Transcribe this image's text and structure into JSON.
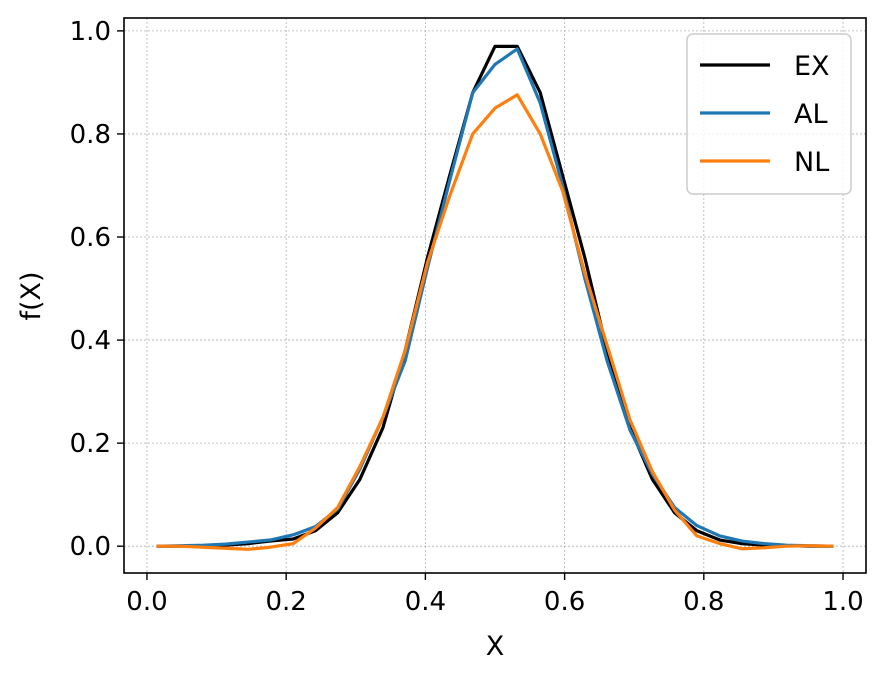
{
  "chart_data": {
    "type": "line",
    "xlabel": "X",
    "ylabel": "f(X)",
    "xlim": [
      -0.033,
      1.033
    ],
    "ylim": [
      -0.052,
      1.025
    ],
    "xticks": [
      0.0,
      0.2,
      0.4,
      0.6,
      0.8,
      1.0
    ],
    "xtick_labels": [
      "0.0",
      "0.2",
      "0.4",
      "0.6",
      "0.8",
      "1.0"
    ],
    "yticks": [
      0.0,
      0.2,
      0.4,
      0.6,
      0.8,
      1.0
    ],
    "ytick_labels": [
      "0.0",
      "0.2",
      "0.4",
      "0.6",
      "0.8",
      "1.0"
    ],
    "grid": true,
    "legend_position": "top-right",
    "x": [
      0.016,
      0.048,
      0.081,
      0.113,
      0.145,
      0.177,
      0.21,
      0.242,
      0.274,
      0.306,
      0.339,
      0.371,
      0.403,
      0.435,
      0.468,
      0.5,
      0.532,
      0.565,
      0.597,
      0.629,
      0.661,
      0.694,
      0.726,
      0.758,
      0.79,
      0.823,
      0.855,
      0.887,
      0.919,
      0.952,
      0.984
    ],
    "series": [
      {
        "name": "EX",
        "color": "#000000",
        "values": [
          0.0,
          0.0,
          0.001,
          0.002,
          0.005,
          0.01,
          0.014,
          0.03,
          0.065,
          0.13,
          0.23,
          0.38,
          0.56,
          0.72,
          0.88,
          0.97,
          0.97,
          0.88,
          0.72,
          0.56,
          0.38,
          0.23,
          0.13,
          0.065,
          0.03,
          0.012,
          0.005,
          0.002,
          0.001,
          0.0,
          0.0
        ]
      },
      {
        "name": "AL",
        "color": "#1f77b4",
        "values": [
          0.0,
          0.001,
          0.002,
          0.004,
          0.008,
          0.012,
          0.022,
          0.038,
          0.072,
          0.15,
          0.25,
          0.36,
          0.54,
          0.71,
          0.88,
          0.935,
          0.965,
          0.86,
          0.7,
          0.52,
          0.36,
          0.225,
          0.14,
          0.075,
          0.04,
          0.02,
          0.01,
          0.005,
          0.002,
          0.001,
          0.0
        ]
      },
      {
        "name": "NL",
        "color": "#ff7f0e",
        "values": [
          0.0,
          0.0,
          -0.002,
          -0.004,
          -0.006,
          -0.002,
          0.005,
          0.035,
          0.075,
          0.155,
          0.25,
          0.38,
          0.55,
          0.68,
          0.8,
          0.85,
          0.876,
          0.8,
          0.69,
          0.53,
          0.39,
          0.245,
          0.145,
          0.07,
          0.02,
          0.005,
          -0.005,
          -0.003,
          0.0,
          0.001,
          0.0
        ]
      }
    ]
  }
}
